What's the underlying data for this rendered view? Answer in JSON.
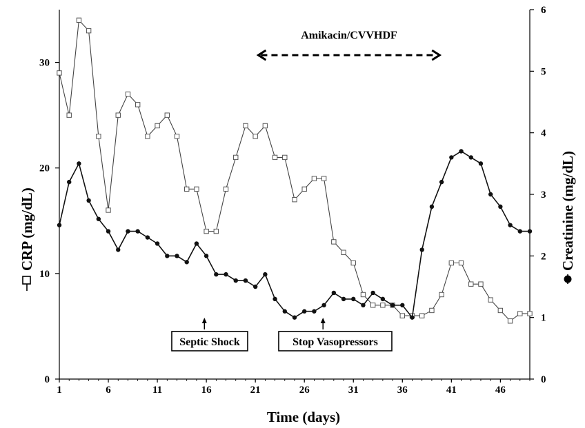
{
  "chart_data": {
    "type": "line",
    "xlabel": "Time (days)",
    "ylabel_left": "CRP (mg/dL)",
    "ylabel_right": "Creatinine (mg/dL)",
    "xlim": [
      1,
      49
    ],
    "ylim_left": [
      0,
      35
    ],
    "ylim_right": [
      0,
      6
    ],
    "x_ticks": [
      1,
      6,
      11,
      16,
      21,
      26,
      31,
      36,
      41,
      46
    ],
    "y_ticks_left": [
      0,
      10,
      20,
      30
    ],
    "y_ticks_right": [
      0,
      1,
      2,
      3,
      4,
      5,
      6
    ],
    "grid": false,
    "series": [
      {
        "axis": "left",
        "marker": "open-square",
        "x": [
          1,
          2,
          3,
          4,
          5,
          6,
          7,
          8,
          9,
          10,
          11,
          12,
          13,
          14,
          15,
          16,
          17,
          18,
          19,
          20,
          21,
          22,
          23,
          24,
          25,
          26,
          27,
          28,
          29,
          30,
          31,
          32,
          33,
          34,
          35,
          36,
          37,
          38,
          39,
          40,
          41,
          42,
          43,
          44,
          45,
          46,
          47,
          48,
          49
        ],
        "values": [
          29,
          25,
          34,
          33,
          23,
          16,
          25,
          27,
          26,
          23,
          24,
          25,
          23,
          18,
          18,
          14,
          14,
          18,
          21,
          24,
          23,
          24,
          21,
          21,
          17,
          18,
          19,
          19,
          13,
          12,
          11,
          8,
          7,
          7,
          7,
          6,
          6,
          6,
          6.5,
          8,
          11,
          11,
          9,
          9,
          7.5,
          6.5,
          5.5,
          6.2,
          6.2
        ]
      },
      {
        "axis": "right",
        "marker": "filled-circle",
        "x": [
          1,
          2,
          3,
          4,
          5,
          6,
          7,
          8,
          9,
          10,
          11,
          12,
          13,
          14,
          15,
          16,
          17,
          18,
          19,
          20,
          21,
          22,
          23,
          24,
          25,
          26,
          27,
          28,
          29,
          30,
          31,
          32,
          33,
          34,
          35,
          36,
          37,
          38,
          39,
          40,
          41,
          42,
          43,
          44,
          45,
          46,
          47,
          48,
          49
        ],
        "values": [
          2.5,
          3.2,
          3.5,
          2.9,
          2.6,
          2.4,
          2.1,
          2.4,
          2.4,
          2.3,
          2.2,
          2.0,
          2.0,
          1.9,
          2.2,
          2.0,
          1.7,
          1.7,
          1.6,
          1.6,
          1.5,
          1.7,
          1.3,
          1.1,
          1.0,
          1.1,
          1.1,
          1.2,
          1.4,
          1.3,
          1.3,
          1.2,
          1.4,
          1.3,
          1.2,
          1.2,
          1.0,
          2.1,
          2.8,
          3.2,
          3.6,
          3.7,
          3.6,
          3.5,
          3.0,
          2.8,
          2.5,
          2.4,
          2.4
        ]
      }
    ],
    "annotations": [
      {
        "text": "Amikacin/CVVHDF",
        "kind": "double-arrow-dashed",
        "x_start": 21.3,
        "x_end": 39.8
      },
      {
        "text": "Septic Shock",
        "kind": "arrow-up-label",
        "x": 15.8
      },
      {
        "text": "Stop Vasopressors",
        "kind": "arrow-up-label",
        "x": 27.9
      }
    ]
  }
}
